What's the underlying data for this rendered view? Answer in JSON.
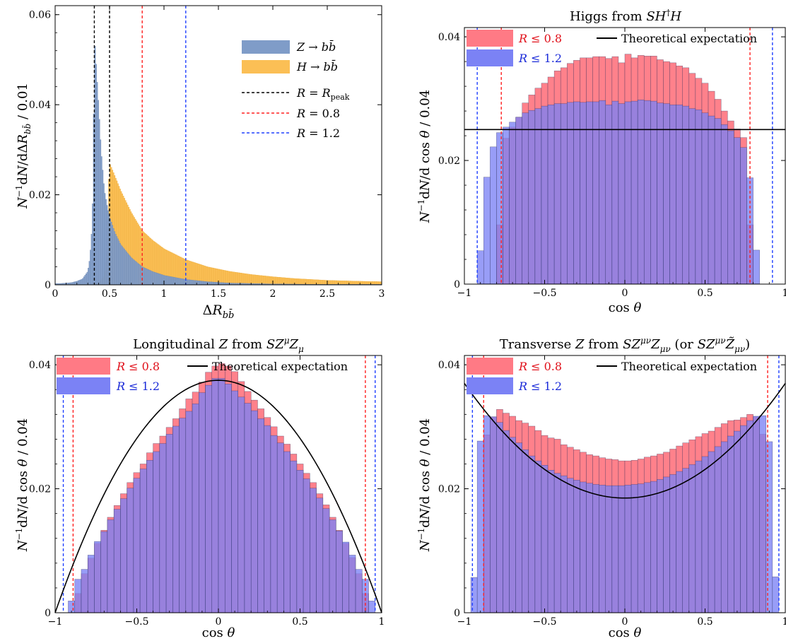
{
  "chart_data": [
    {
      "type": "bar",
      "title": "",
      "xlabel": "ΔR_{bb̄}",
      "ylabel": "N⁻¹dN/dΔR_{bb̄} / 0.01",
      "xlim": [
        0,
        3
      ],
      "ylim": [
        0,
        0.062
      ],
      "xticks": [
        0,
        0.5,
        1,
        1.5,
        2,
        2.5,
        3
      ],
      "xtick_labels": [
        "0",
        "0.5",
        "1",
        "1.5",
        "2",
        "2.5",
        "3"
      ],
      "yticks": [
        0,
        0.02,
        0.04,
        0.06
      ],
      "ytick_labels": [
        "0",
        "0.02",
        "0.04",
        "0.06"
      ],
      "bin_width": 0.01,
      "series": [
        {
          "name": "Z → bb̄",
          "color": "#7f9cc8",
          "points": [
            [
              0.05,
              0.0003
            ],
            [
              0.15,
              0.0005
            ],
            [
              0.2,
              0.0008
            ],
            [
              0.25,
              0.0013
            ],
            [
              0.3,
              0.003
            ],
            [
              0.32,
              0.006
            ],
            [
              0.34,
              0.013
            ],
            [
              0.35,
              0.023
            ],
            [
              0.355,
              0.038
            ],
            [
              0.36,
              0.05
            ],
            [
              0.365,
              0.053
            ],
            [
              0.37,
              0.051
            ],
            [
              0.38,
              0.047
            ],
            [
              0.4,
              0.039
            ],
            [
              0.42,
              0.03
            ],
            [
              0.45,
              0.021
            ],
            [
              0.48,
              0.017
            ],
            [
              0.5,
              0.015
            ],
            [
              0.55,
              0.0115
            ],
            [
              0.6,
              0.009
            ],
            [
              0.7,
              0.006
            ],
            [
              0.8,
              0.004
            ],
            [
              0.9,
              0.0029
            ],
            [
              1.0,
              0.0021
            ],
            [
              1.2,
              0.0012
            ],
            [
              1.4,
              0.0007
            ],
            [
              1.6,
              0.0004
            ],
            [
              2.0,
              0.0002
            ],
            [
              2.5,
              0.0001
            ],
            [
              3.0,
              0.0001
            ]
          ]
        },
        {
          "name": "H → bb̄",
          "color": "#fbbf55",
          "points": [
            [
              0.05,
              0.0001
            ],
            [
              0.3,
              0.0001
            ],
            [
              0.4,
              0.0003
            ],
            [
              0.45,
              0.002
            ],
            [
              0.48,
              0.008
            ],
            [
              0.49,
              0.02
            ],
            [
              0.5,
              0.027
            ],
            [
              0.52,
              0.0258
            ],
            [
              0.55,
              0.024
            ],
            [
              0.6,
              0.021
            ],
            [
              0.7,
              0.016
            ],
            [
              0.8,
              0.012
            ],
            [
              0.9,
              0.0098
            ],
            [
              1.0,
              0.008
            ],
            [
              1.2,
              0.0056
            ],
            [
              1.4,
              0.004
            ],
            [
              1.6,
              0.003
            ],
            [
              1.8,
              0.0023
            ],
            [
              2.0,
              0.0018
            ],
            [
              2.2,
              0.0014
            ],
            [
              2.5,
              0.001
            ],
            [
              2.8,
              0.0008
            ],
            [
              3.0,
              0.0007
            ]
          ]
        }
      ],
      "vlines": [
        {
          "name": "R = R_peak",
          "x": 0.36,
          "color": "#000000"
        },
        {
          "name": "R = R_peak",
          "x": 0.5,
          "color": "#000000"
        },
        {
          "name": "R = 0.8",
          "x": 0.8,
          "color": "#ff2020"
        },
        {
          "name": "R = 1.2",
          "x": 1.2,
          "color": "#2040ff"
        }
      ],
      "legend": {
        "position": "top-right",
        "entries": [
          {
            "kind": "patch",
            "label": "Z → bb̄",
            "color": "#7f9cc8"
          },
          {
            "kind": "patch",
            "label": "H → bb̄",
            "color": "#fbbf55"
          },
          {
            "kind": "dash",
            "label": "R = R_peak",
            "color": "#000000"
          },
          {
            "kind": "dash",
            "label": "R = 0.8",
            "color": "#ff2020"
          },
          {
            "kind": "dash",
            "label": "R = 1.2",
            "color": "#2040ff"
          }
        ]
      }
    },
    {
      "type": "bar",
      "title": "Higgs from SH†H",
      "xlabel": "cos θ",
      "ylabel": "N⁻¹dN/dcos θ / 0.04",
      "xlim": [
        -1,
        1
      ],
      "ylim": [
        0,
        0.0415
      ],
      "xticks": [
        -1,
        -0.5,
        0,
        0.5,
        1
      ],
      "xtick_labels": [
        "−1",
        "−0.5",
        "0",
        "0.5",
        "1"
      ],
      "yticks": [
        0,
        0.02,
        0.04
      ],
      "ytick_labels": [
        "0",
        "0.02",
        "0.04"
      ],
      "bin_edges": [
        -1.0,
        -0.96,
        -0.92,
        -0.88,
        -0.84,
        -0.8,
        -0.76,
        -0.72,
        -0.68,
        -0.64,
        -0.6,
        -0.56,
        -0.52,
        -0.48,
        -0.44,
        -0.4,
        -0.36,
        -0.32,
        -0.28,
        -0.24,
        -0.2,
        -0.16,
        -0.12,
        -0.08,
        -0.04,
        0.0,
        0.04,
        0.08,
        0.12,
        0.16,
        0.2,
        0.24,
        0.28,
        0.32,
        0.36,
        0.4,
        0.44,
        0.48,
        0.52,
        0.56,
        0.6,
        0.64,
        0.68,
        0.72,
        0.76,
        0.8,
        0.84,
        0.88,
        0.92,
        0.96,
        1.0
      ],
      "series": [
        {
          "name": "R ≤ 0.8",
          "color": "#ff7a85",
          "values": [
            0,
            0,
            0,
            0,
            0,
            0.0096,
            0.0236,
            0.0254,
            0.027,
            0.0293,
            0.0306,
            0.0317,
            0.0325,
            0.0335,
            0.0345,
            0.035,
            0.0357,
            0.0362,
            0.0366,
            0.0366,
            0.0368,
            0.0368,
            0.0365,
            0.0368,
            0.0358,
            0.0372,
            0.0366,
            0.037,
            0.0369,
            0.0369,
            0.0363,
            0.036,
            0.0358,
            0.0353,
            0.035,
            0.0341,
            0.0333,
            0.0325,
            0.0312,
            0.0299,
            0.028,
            0.0264,
            0.0251,
            0.0237,
            0.0096,
            0,
            0,
            0,
            0,
            0
          ]
        },
        {
          "name": "R ≤ 1.2",
          "color": "#7b82f5",
          "values": [
            0,
            0,
            0.0054,
            0.0173,
            0.0222,
            0.0245,
            0.0254,
            0.0262,
            0.027,
            0.0277,
            0.0281,
            0.0284,
            0.0288,
            0.029,
            0.0292,
            0.0292,
            0.0294,
            0.0295,
            0.0294,
            0.0295,
            0.0295,
            0.0297,
            0.029,
            0.0296,
            0.0292,
            0.0295,
            0.0296,
            0.0298,
            0.0297,
            0.0296,
            0.0293,
            0.0292,
            0.029,
            0.029,
            0.0288,
            0.0284,
            0.0282,
            0.0277,
            0.0272,
            0.0268,
            0.0258,
            0.0248,
            0.0237,
            0.0221,
            0.0172,
            0.0055,
            0,
            0,
            0,
            0
          ]
        }
      ],
      "vlines": [
        {
          "name": "R ≤ 0.8",
          "x": -0.77,
          "color": "#ff2020"
        },
        {
          "name": "R ≤ 0.8",
          "x": 0.78,
          "color": "#ff2020"
        },
        {
          "name": "R ≤ 1.2",
          "x": -0.92,
          "color": "#2040ff"
        },
        {
          "name": "R ≤ 1.2",
          "x": 0.92,
          "color": "#2040ff"
        }
      ],
      "theory": {
        "name": "Theoretical expectation",
        "kind": "constant",
        "value": 0.025
      },
      "legend": {
        "position": "top",
        "entries": [
          {
            "kind": "patch",
            "label": "R ≤ 0.8",
            "color": "#ff7a85",
            "text_color": "#e0101a"
          },
          {
            "kind": "patch",
            "label": "R ≤ 1.2",
            "color": "#7b82f5",
            "text_color": "#1a2ad8"
          },
          {
            "kind": "line",
            "label": "Theoretical expectation",
            "color": "#000000"
          }
        ]
      }
    },
    {
      "type": "bar",
      "title": "Longitudinal Z from SZ^μZ_μ",
      "xlabel": "cos θ",
      "ylabel": "N⁻¹dN/dcos θ / 0.04",
      "xlim": [
        -1,
        1
      ],
      "ylim": [
        0,
        0.0415
      ],
      "xticks": [
        -1,
        -0.5,
        0,
        0.5,
        1
      ],
      "xtick_labels": [
        "−1",
        "−0.5",
        "0",
        "0.5",
        "1"
      ],
      "yticks": [
        0,
        0.02,
        0.04
      ],
      "ytick_labels": [
        "0",
        "0.02",
        "0.04"
      ],
      "bin_edges": [
        -1.0,
        -0.96,
        -0.92,
        -0.88,
        -0.84,
        -0.8,
        -0.76,
        -0.72,
        -0.68,
        -0.64,
        -0.6,
        -0.56,
        -0.52,
        -0.48,
        -0.44,
        -0.4,
        -0.36,
        -0.32,
        -0.28,
        -0.24,
        -0.2,
        -0.16,
        -0.12,
        -0.08,
        -0.04,
        0.0,
        0.04,
        0.08,
        0.12,
        0.16,
        0.2,
        0.24,
        0.28,
        0.32,
        0.36,
        0.4,
        0.44,
        0.48,
        0.52,
        0.56,
        0.6,
        0.64,
        0.68,
        0.72,
        0.76,
        0.8,
        0.84,
        0.88,
        0.92,
        0.96,
        1.0
      ],
      "series": [
        {
          "name": "R ≤ 0.8",
          "color": "#ff7a85",
          "values": [
            0,
            0,
            0,
            0.0031,
            0.0063,
            0.0088,
            0.0112,
            0.0133,
            0.0154,
            0.0173,
            0.0192,
            0.021,
            0.0226,
            0.024,
            0.0258,
            0.0273,
            0.0285,
            0.0299,
            0.0313,
            0.0329,
            0.0345,
            0.0356,
            0.0372,
            0.0388,
            0.0398,
            0.0402,
            0.0398,
            0.0389,
            0.0373,
            0.0357,
            0.0343,
            0.0329,
            0.0315,
            0.03,
            0.0285,
            0.0272,
            0.0256,
            0.024,
            0.0225,
            0.021,
            0.0192,
            0.0174,
            0.0154,
            0.0133,
            0.0112,
            0.0089,
            0.0063,
            0.0031,
            0,
            0
          ]
        },
        {
          "name": "R ≤ 1.2",
          "color": "#7b82f5",
          "values": [
            0,
            0,
            0.0019,
            0.0054,
            0.007,
            0.0093,
            0.0115,
            0.0131,
            0.015,
            0.0167,
            0.0184,
            0.0201,
            0.0217,
            0.0232,
            0.0246,
            0.026,
            0.0273,
            0.0288,
            0.0301,
            0.0314,
            0.0325,
            0.0337,
            0.0355,
            0.0367,
            0.0378,
            0.0378,
            0.0369,
            0.0358,
            0.0348,
            0.0338,
            0.0326,
            0.0313,
            0.0302,
            0.0286,
            0.0274,
            0.026,
            0.0245,
            0.023,
            0.0216,
            0.0201,
            0.0185,
            0.0168,
            0.015,
            0.0132,
            0.0114,
            0.0093,
            0.007,
            0.0054,
            0.0019,
            0
          ]
        }
      ],
      "vlines": [
        {
          "name": "R ≤ 0.8",
          "x": -0.89,
          "color": "#ff2020"
        },
        {
          "name": "R ≤ 0.8",
          "x": 0.9,
          "color": "#ff2020"
        },
        {
          "name": "R ≤ 1.2",
          "x": -0.95,
          "color": "#2040ff"
        },
        {
          "name": "R ≤ 1.2",
          "x": 0.96,
          "color": "#2040ff"
        }
      ],
      "theory": {
        "name": "Theoretical expectation",
        "kind": "parabola",
        "peak": 0.0375
      },
      "legend": {
        "position": "top",
        "entries": [
          {
            "kind": "patch",
            "label": "R ≤ 0.8",
            "color": "#ff7a85",
            "text_color": "#e0101a"
          },
          {
            "kind": "patch",
            "label": "R ≤ 1.2",
            "color": "#7b82f5",
            "text_color": "#1a2ad8"
          },
          {
            "kind": "line",
            "label": "Theoretical expectation",
            "color": "#000000"
          }
        ]
      }
    },
    {
      "type": "bar",
      "title": "Transverse Z from SZ^{μν}Z_{μν} (or SZ^{μν}Z̃_{μν})",
      "xlabel": "cos θ",
      "ylabel": "N⁻¹dN/dcos θ / 0.04",
      "xlim": [
        -1,
        1
      ],
      "ylim": [
        0,
        0.0415
      ],
      "xticks": [
        -1,
        -0.5,
        0,
        0.5,
        1
      ],
      "xtick_labels": [
        "−1",
        "−0.5",
        "0",
        "0.5",
        "1"
      ],
      "yticks": [
        0,
        0.02,
        0.04
      ],
      "ytick_labels": [
        "0",
        "0.02",
        "0.04"
      ],
      "bin_edges": [
        -1.0,
        -0.96,
        -0.92,
        -0.88,
        -0.84,
        -0.8,
        -0.76,
        -0.72,
        -0.68,
        -0.64,
        -0.6,
        -0.56,
        -0.52,
        -0.48,
        -0.44,
        -0.4,
        -0.36,
        -0.32,
        -0.28,
        -0.24,
        -0.2,
        -0.16,
        -0.12,
        -0.08,
        -0.04,
        0.0,
        0.04,
        0.08,
        0.12,
        0.16,
        0.2,
        0.24,
        0.28,
        0.32,
        0.36,
        0.4,
        0.44,
        0.48,
        0.52,
        0.56,
        0.6,
        0.64,
        0.68,
        0.72,
        0.76,
        0.8,
        0.84,
        0.88,
        0.92,
        0.96,
        1.0
      ],
      "series": [
        {
          "name": "R ≤ 0.8",
          "color": "#ff7a85",
          "values": [
            0,
            0,
            0,
            0.0287,
            0.0316,
            0.0328,
            0.0322,
            0.0317,
            0.031,
            0.0306,
            0.0301,
            0.0294,
            0.0286,
            0.0282,
            0.028,
            0.0271,
            0.0267,
            0.0263,
            0.0259,
            0.0255,
            0.0253,
            0.025,
            0.0248,
            0.0247,
            0.0245,
            0.0245,
            0.0246,
            0.0248,
            0.0251,
            0.0253,
            0.0256,
            0.0259,
            0.0264,
            0.0269,
            0.0274,
            0.0279,
            0.0284,
            0.0289,
            0.0293,
            0.0299,
            0.0305,
            0.031,
            0.0311,
            0.0315,
            0.032,
            0.0316,
            0.0288,
            0,
            0,
            0
          ]
        },
        {
          "name": "R ≤ 1.2",
          "color": "#7b82f5",
          "values": [
            0,
            0.0057,
            0.0277,
            0.0318,
            0.0316,
            0.0307,
            0.0294,
            0.0283,
            0.0274,
            0.0263,
            0.0253,
            0.0245,
            0.0238,
            0.023,
            0.0225,
            0.0221,
            0.0217,
            0.0214,
            0.0211,
            0.0209,
            0.0207,
            0.0206,
            0.0205,
            0.0205,
            0.0205,
            0.0206,
            0.0207,
            0.0208,
            0.021,
            0.0212,
            0.0215,
            0.0219,
            0.0223,
            0.0228,
            0.0233,
            0.0239,
            0.0245,
            0.0252,
            0.026,
            0.0268,
            0.0276,
            0.0285,
            0.0293,
            0.0302,
            0.031,
            0.0317,
            0.0318,
            0.0276,
            0.0058,
            0
          ]
        }
      ],
      "vlines": [
        {
          "name": "R ≤ 0.8",
          "x": -0.88,
          "color": "#ff2020"
        },
        {
          "name": "R ≤ 0.8",
          "x": 0.89,
          "color": "#ff2020"
        },
        {
          "name": "R ≤ 1.2",
          "x": -0.95,
          "color": "#2040ff"
        },
        {
          "name": "R ≤ 1.2",
          "x": 0.96,
          "color": "#2040ff"
        }
      ],
      "theory": {
        "name": "Theoretical expectation",
        "kind": "parabola",
        "base": 0.0185,
        "edge": 0.037
      },
      "legend": {
        "position": "top",
        "entries": [
          {
            "kind": "patch",
            "label": "R ≤ 0.8",
            "color": "#ff7a85",
            "text_color": "#e0101a"
          },
          {
            "kind": "patch",
            "label": "R ≤ 1.2",
            "color": "#7b82f5",
            "text_color": "#1a2ad8"
          },
          {
            "kind": "line",
            "label": "Theoretical expectation",
            "color": "#000000"
          }
        ]
      }
    }
  ]
}
